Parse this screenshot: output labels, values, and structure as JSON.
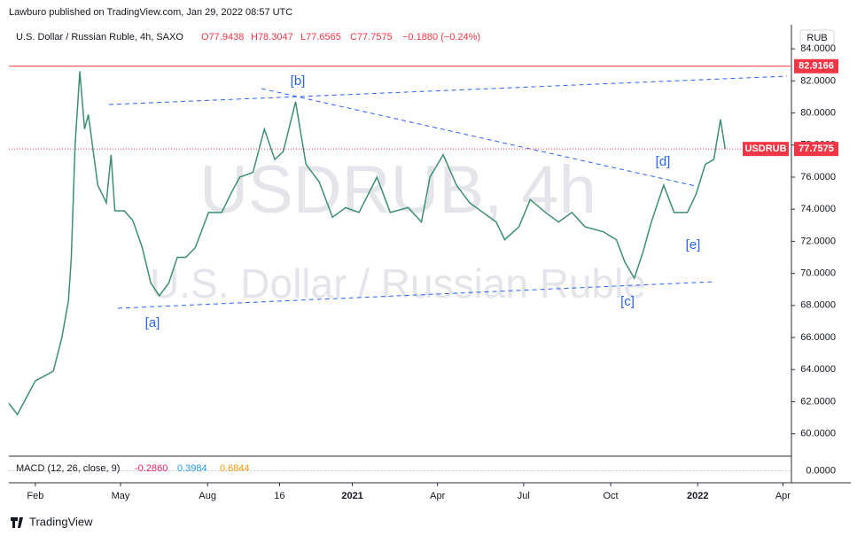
{
  "header": {
    "publisher": "Lawburo published on TradingView.com, Jan 29, 2022 08:57 UTC",
    "footer": "TradingView"
  },
  "chart_data": {
    "type": "line",
    "symbol": "U.S. Dollar / Russian Ruble, 4h, SAXO",
    "ohlc_legend": {
      "open": "O77.9438",
      "high": "H78.3047",
      "low": "L77.6565",
      "close": "C77.7575",
      "change": "−0.1880 (−0.24%)"
    },
    "watermark": [
      "USDRUB, 4h",
      "U.S. Dollar / Russian Ruble"
    ],
    "currency": "RUB",
    "x": [
      3,
      12,
      31,
      50,
      59,
      66,
      69,
      73,
      78,
      83,
      87,
      97,
      106,
      111,
      115,
      125,
      134,
      144,
      153,
      162,
      172,
      181,
      190,
      200,
      214,
      228,
      237,
      247,
      261,
      273,
      284,
      293,
      306,
      317,
      331,
      345,
      359,
      373,
      392,
      406,
      425,
      439,
      448,
      462,
      476,
      490,
      504,
      518,
      527,
      542,
      554,
      570,
      584,
      598,
      612,
      631,
      645,
      654,
      664,
      673,
      682,
      695,
      706,
      720,
      729,
      739,
      748,
      755,
      760
    ],
    "series": [
      {
        "name": "USDRUB",
        "color": "#3d8f6f",
        "values": [
          61.9,
          61.2,
          63.3,
          63.9,
          66,
          68.3,
          71,
          78,
          82.6,
          79,
          79.9,
          75.5,
          74.4,
          77.4,
          73.9,
          73.9,
          73.3,
          71.6,
          69.4,
          68.6,
          69.4,
          71,
          71,
          71.6,
          73.8,
          73.8,
          74.9,
          76,
          76.3,
          79,
          77.1,
          77.6,
          80.7,
          76.8,
          75.7,
          73.5,
          74.1,
          73.8,
          76,
          73.8,
          74.1,
          73.2,
          76,
          77.4,
          75.5,
          74.4,
          73.8,
          73.2,
          72.1,
          72.9,
          74.6,
          73.8,
          73.2,
          73.8,
          72.9,
          72.6,
          72.1,
          70.7,
          69.7,
          71.3,
          73.2,
          75.5,
          73.8,
          73.8,
          74.9,
          76.8,
          77.1,
          79.6,
          77.7575
        ]
      }
    ],
    "xlim": [
      3,
      830
    ],
    "xticks": [
      {
        "value": 31,
        "label": "Feb"
      },
      {
        "value": 121,
        "label": "May"
      },
      {
        "value": 213,
        "label": "Aug"
      },
      {
        "value": 289,
        "label": "16"
      },
      {
        "value": 366,
        "label": "2021"
      },
      {
        "value": 456,
        "label": "Apr"
      },
      {
        "value": 547,
        "label": "Jul"
      },
      {
        "value": 639,
        "label": "Oct"
      },
      {
        "value": 731,
        "label": "2022"
      },
      {
        "value": 821,
        "label": "Apr"
      }
    ],
    "ylim": [
      58.6,
      85.5
    ],
    "yticks": [
      {
        "value": 60,
        "label": "60.0000"
      },
      {
        "value": 62,
        "label": "62.0000"
      },
      {
        "value": 64,
        "label": "64.0000"
      },
      {
        "value": 66,
        "label": "66.0000"
      },
      {
        "value": 68,
        "label": "68.0000"
      },
      {
        "value": 70,
        "label": "70.0000"
      },
      {
        "value": 72,
        "label": "72.0000"
      },
      {
        "value": 74,
        "label": "74.0000"
      },
      {
        "value": 76,
        "label": "76.0000"
      },
      {
        "value": 78,
        "label": "78.0000"
      },
      {
        "value": 80,
        "label": "80.0000"
      },
      {
        "value": 82,
        "label": "82.0000"
      },
      {
        "value": 84,
        "label": "84.0000"
      }
    ],
    "grid": false,
    "levels": [
      {
        "value": 82.9166,
        "label": "82.9166",
        "color": "#f23645"
      }
    ],
    "last_price": {
      "value": 77.7575,
      "label": "77.7575",
      "color": "#f23645"
    },
    "annotations": [
      "[a]",
      "[b]",
      "[c]",
      "[d]",
      "[e]"
    ],
    "macd": {
      "legend": "MACD (12, 26, close, 9)",
      "values": [
        "-0.2860",
        "0.3984",
        "0.6844"
      ],
      "ylim": [
        -1.5,
        1.5
      ],
      "yticks": [
        {
          "value": 0,
          "label": "0.0000"
        }
      ]
    }
  }
}
